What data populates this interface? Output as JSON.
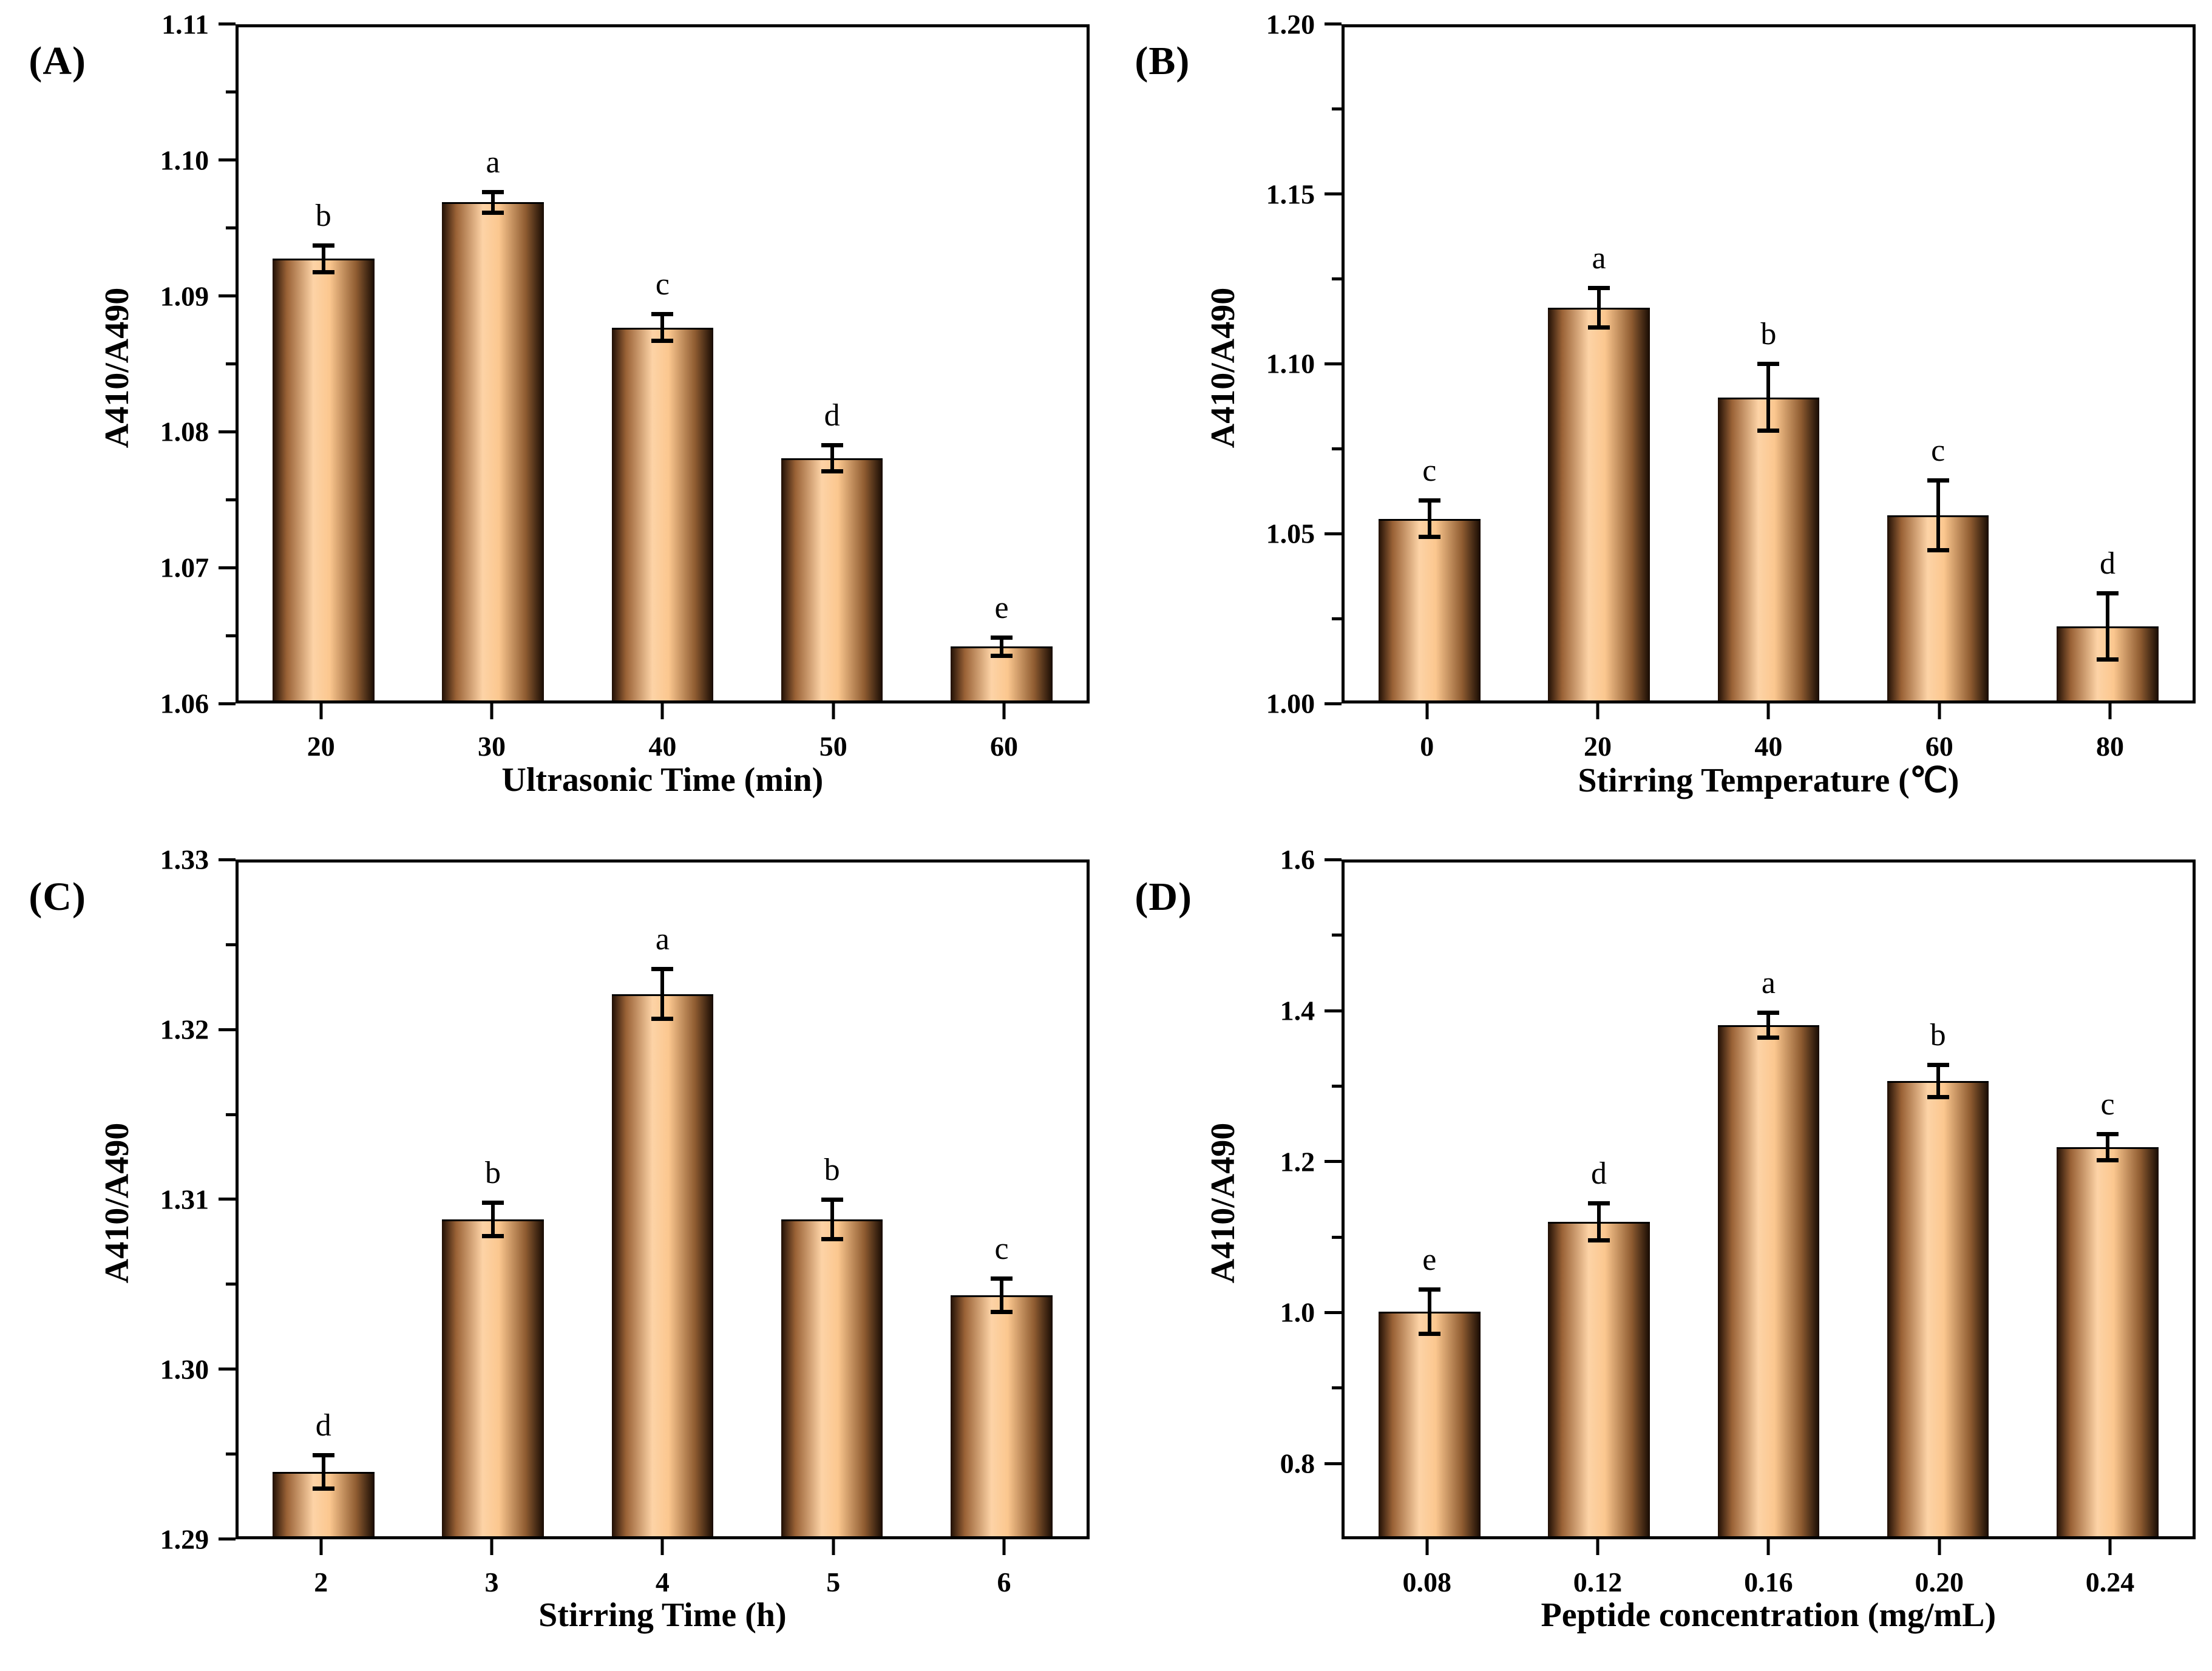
{
  "figure_background": "#ffffff",
  "colors": {
    "axis": "#000000",
    "text": "#000000",
    "error_bar": "#000000",
    "bar_gradient_stops": [
      "#200f05",
      "#9a6236",
      "#fdd3a6",
      "#fbc78f",
      "#8f5c31",
      "#170b03"
    ],
    "bar_gradient_positions": [
      0,
      14,
      40,
      56,
      82,
      100
    ]
  },
  "chart_data": [
    {
      "type": "bar",
      "panel_label": "(A)",
      "title": "",
      "xlabel": "Ultrasonic Time (min)",
      "ylabel": "A410/A490",
      "categories": [
        "20",
        "30",
        "40",
        "50",
        "60"
      ],
      "values": [
        1.0928,
        1.097,
        1.0877,
        1.078,
        1.064
      ],
      "errors": [
        0.001,
        0.0008,
        0.001,
        0.001,
        0.0007
      ],
      "sig_letters": [
        "b",
        "a",
        "c",
        "d",
        "e"
      ],
      "ylim": [
        1.06,
        1.11
      ],
      "yticks": [
        {
          "value": 1.06,
          "label": "1.06"
        },
        {
          "value": 1.07,
          "label": "1.07"
        },
        {
          "value": 1.08,
          "label": "1.08"
        },
        {
          "value": 1.09,
          "label": "1.09"
        },
        {
          "value": 1.1,
          "label": "1.10"
        },
        {
          "value": 1.11,
          "label": "1.11"
        }
      ],
      "yticks_minor": [
        1.065,
        1.075,
        1.085,
        1.095,
        1.105
      ],
      "grid": false,
      "legend": "none"
    },
    {
      "type": "bar",
      "panel_label": "(B)",
      "title": "",
      "xlabel": "Stirring Temperature (℃)",
      "ylabel": "A410/A490",
      "categories": [
        "0",
        "20",
        "40",
        "60",
        "80"
      ],
      "values": [
        1.054,
        1.1167,
        1.09,
        1.055,
        1.022
      ],
      "errors": [
        0.0055,
        0.006,
        0.01,
        0.0105,
        0.01
      ],
      "sig_letters": [
        "c",
        "a",
        "b",
        "c",
        "d"
      ],
      "ylim": [
        1.0,
        1.2
      ],
      "yticks": [
        {
          "value": 1.0,
          "label": "1.00"
        },
        {
          "value": 1.05,
          "label": "1.05"
        },
        {
          "value": 1.1,
          "label": "1.10"
        },
        {
          "value": 1.15,
          "label": "1.15"
        },
        {
          "value": 1.2,
          "label": "1.20"
        }
      ],
      "yticks_minor": [
        1.025,
        1.075,
        1.125,
        1.175
      ],
      "grid": false,
      "legend": "none"
    },
    {
      "type": "bar",
      "panel_label": "(C)",
      "title": "",
      "xlabel": "Stirring Time (h)",
      "ylabel": "A410/A490",
      "categories": [
        "2",
        "3",
        "4",
        "5",
        "6"
      ],
      "values": [
        1.2938,
        1.3088,
        1.3222,
        1.3088,
        1.3043
      ],
      "errors": [
        0.001,
        0.001,
        0.0015,
        0.0012,
        0.001
      ],
      "sig_letters": [
        "d",
        "b",
        "a",
        "b",
        "c"
      ],
      "ylim": [
        1.29,
        1.33
      ],
      "yticks": [
        {
          "value": 1.29,
          "label": "1.29"
        },
        {
          "value": 1.3,
          "label": "1.30"
        },
        {
          "value": 1.31,
          "label": "1.31"
        },
        {
          "value": 1.32,
          "label": "1.32"
        },
        {
          "value": 1.33,
          "label": "1.33"
        }
      ],
      "yticks_minor": [
        1.295,
        1.305,
        1.315,
        1.325
      ],
      "grid": false,
      "legend": "none"
    },
    {
      "type": "bar",
      "panel_label": "(D)",
      "title": "",
      "xlabel": "Peptide concentration (mg/mL)",
      "ylabel": "A410/A490",
      "categories": [
        "0.08",
        "0.12",
        "0.16",
        "0.20",
        "0.24"
      ],
      "values": [
        1.0,
        1.12,
        1.383,
        1.308,
        1.22
      ],
      "errors": [
        0.03,
        0.025,
        0.017,
        0.022,
        0.018
      ],
      "sig_letters": [
        "e",
        "d",
        "a",
        "b",
        "c"
      ],
      "ylim": [
        0.7,
        1.6
      ],
      "yticks": [
        {
          "value": 0.8,
          "label": "0.8"
        },
        {
          "value": 1.0,
          "label": "1.0"
        },
        {
          "value": 1.2,
          "label": "1.2"
        },
        {
          "value": 1.4,
          "label": "1.4"
        },
        {
          "value": 1.6,
          "label": "1.6"
        }
      ],
      "yticks_minor": [
        0.9,
        1.1,
        1.3,
        1.5
      ],
      "grid": false,
      "legend": "none"
    }
  ]
}
